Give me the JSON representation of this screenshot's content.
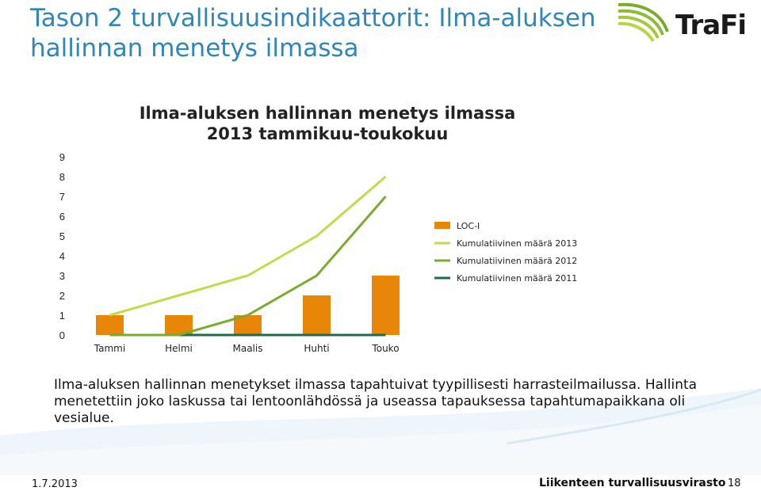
{
  "slide": {
    "title": "Tason 2 turvallisuusindikaattorit: Ilma-aluksen hallinnan menetys ilmassa",
    "logo_text": "TraFi",
    "body": "Ilma-aluksen hallinnan menetykset ilmassa tapahtuivat tyypillisesti harrasteilmailussa. Hallinta menetettiin joko laskussa tai lentoonlähdössä ja useassa tapauksessa tapahtumapaikkana oli vesialue.",
    "footer_date": "1.7.2013",
    "footer_org": "Liikenteen turvallisuusvirasto",
    "page_number": "18"
  },
  "colors": {
    "title": "#2f86b8",
    "bar": "#e8860a",
    "line_2013": "#c5d94a",
    "line_2012": "#7aab2e",
    "line_2011": "#1f6b4a"
  },
  "chart_data": {
    "type": "bar",
    "title_lines": [
      "Ilma-aluksen hallinnan menetys ilmassa",
      "2013 tammikuu-toukokuu"
    ],
    "categories": [
      "Tammi",
      "Helmi",
      "Maalis",
      "Huhti",
      "Touko"
    ],
    "ylim": [
      0,
      9
    ],
    "yticks": [
      "0",
      "1",
      "2",
      "3",
      "4",
      "5",
      "6",
      "7",
      "8",
      "9"
    ],
    "grid": false,
    "legend_position": "right",
    "series": [
      {
        "name": "LOC-I",
        "kind": "bar",
        "values": [
          1,
          1,
          1,
          2,
          3
        ]
      },
      {
        "name": "Kumulatiivinen määrä 2013",
        "kind": "line",
        "values": [
          1,
          2,
          3,
          5,
          8
        ]
      },
      {
        "name": "Kumulatiivinen määrä 2012",
        "kind": "line",
        "values": [
          0,
          0,
          1,
          3,
          7
        ]
      },
      {
        "name": "Kumulatiivinen määrä 2011",
        "kind": "line",
        "values": [
          0,
          0,
          0,
          0,
          0
        ]
      }
    ]
  }
}
